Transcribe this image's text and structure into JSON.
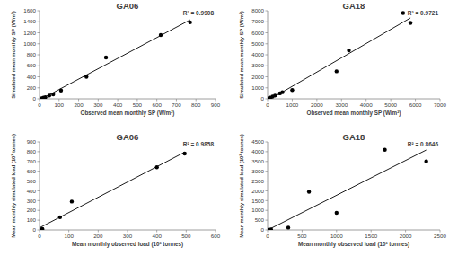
{
  "chart_data": [
    {
      "type": "scatter",
      "title": "GA06",
      "annotation": "R² = 0.9908",
      "x_label": "Observed mean monthly SP (W/m²)",
      "y_label": "Simulated mean monthly SP (W/m²)",
      "x": [
        0,
        10,
        20,
        30,
        50,
        70,
        110,
        240,
        340,
        620,
        770
      ],
      "values": [
        0,
        10,
        20,
        30,
        60,
        80,
        150,
        400,
        750,
        1160,
        1390
      ],
      "xlim": [
        0,
        900
      ],
      "xticks": [
        0,
        100,
        200,
        300,
        400,
        500,
        600,
        700,
        800,
        900
      ],
      "ylim": [
        0,
        1600
      ],
      "yticks": [
        0,
        200,
        400,
        600,
        800,
        1000,
        1200,
        1400,
        1600
      ],
      "color": "#000000",
      "marker": "circle",
      "grid": false
    },
    {
      "type": "scatter",
      "title": "GA18",
      "annotation": "R² = 0.9721",
      "x_label": "Observed mean monthly SP (W/m²)",
      "y_label": "Simulated mean monthly SP (W/m²)",
      "x": [
        0,
        50,
        100,
        200,
        300,
        500,
        600,
        1000,
        2800,
        3300,
        5500,
        5800
      ],
      "values": [
        0,
        50,
        100,
        200,
        300,
        500,
        600,
        800,
        2500,
        4400,
        7800,
        6900
      ],
      "xlim": [
        0,
        7000
      ],
      "xticks": [
        0,
        1000,
        2000,
        3000,
        4000,
        5000,
        6000,
        7000
      ],
      "ylim": [
        0,
        8000
      ],
      "yticks": [
        0,
        1000,
        2000,
        3000,
        4000,
        5000,
        6000,
        7000,
        8000
      ],
      "color": "#000000",
      "marker": "circle",
      "grid": false
    },
    {
      "type": "scatter",
      "title": "GA06",
      "annotation": "R² = 0.9858",
      "x_label": "Mean monthly observed load (10³ tonnes)",
      "y_label": "Mean monthly simulated load (10³ tonnes)",
      "x": [
        0,
        5,
        10,
        70,
        110,
        400,
        495
      ],
      "values": [
        0,
        5,
        10,
        130,
        290,
        640,
        780
      ],
      "xlim": [
        0,
        600
      ],
      "xticks": [
        0,
        100,
        200,
        300,
        400,
        500,
        600
      ],
      "ylim": [
        0,
        900
      ],
      "yticks": [
        0,
        100,
        200,
        300,
        400,
        500,
        600,
        700,
        800,
        900
      ],
      "color": "#000000",
      "marker": "circle",
      "grid": false
    },
    {
      "type": "scatter",
      "title": "GA18",
      "annotation": "R² = 0.8646",
      "x_label": "Mean monthly observed load (10³ tonnes)",
      "y_label": "Mean monthly simulated load (10³ tonnes)",
      "x": [
        0,
        20,
        50,
        300,
        600,
        1000,
        1700,
        2300
      ],
      "values": [
        0,
        10,
        20,
        120,
        1950,
        870,
        4100,
        3500
      ],
      "xlim": [
        0,
        2500
      ],
      "xticks": [
        0,
        500,
        1000,
        1500,
        2000,
        2500
      ],
      "ylim": [
        0,
        4500
      ],
      "yticks": [
        0,
        500,
        1000,
        1500,
        2000,
        2500,
        3000,
        3500,
        4000,
        4500
      ],
      "color": "#000000",
      "marker": "circle",
      "grid": false
    }
  ]
}
